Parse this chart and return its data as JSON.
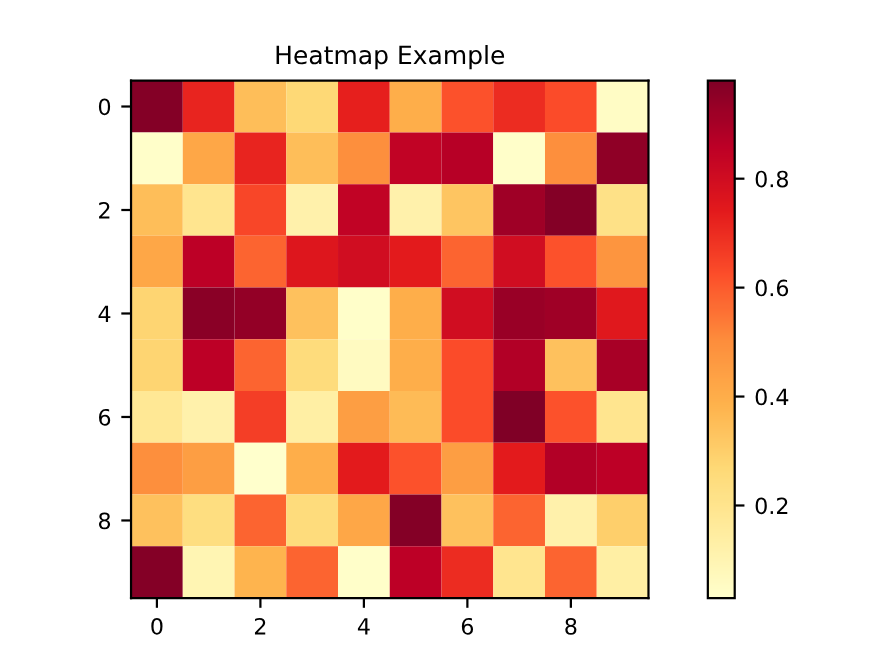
{
  "chart_data": {
    "type": "heatmap",
    "title": "Heatmap Example",
    "categories": [
      "0",
      null,
      "2",
      null,
      "4",
      null,
      "6",
      null,
      "8",
      null
    ],
    "y_categories": [
      "0",
      null,
      "2",
      null,
      "4",
      null,
      "6",
      null,
      "8",
      null
    ],
    "cells": [
      [
        0.97,
        0.72,
        0.35,
        0.27,
        0.73,
        0.4,
        0.62,
        0.7,
        0.63,
        0.05
      ],
      [
        0.04,
        0.42,
        0.72,
        0.35,
        0.5,
        0.85,
        0.87,
        0.04,
        0.5,
        0.95
      ],
      [
        0.35,
        0.2,
        0.64,
        0.12,
        0.85,
        0.12,
        0.33,
        0.92,
        0.97,
        0.22
      ],
      [
        0.42,
        0.86,
        0.58,
        0.76,
        0.8,
        0.74,
        0.58,
        0.8,
        0.62,
        0.48
      ],
      [
        0.28,
        0.96,
        0.94,
        0.34,
        0.04,
        0.4,
        0.8,
        0.93,
        0.92,
        0.75
      ],
      [
        0.28,
        0.86,
        0.58,
        0.25,
        0.06,
        0.4,
        0.63,
        0.88,
        0.34,
        0.9
      ],
      [
        0.18,
        0.12,
        0.66,
        0.14,
        0.45,
        0.36,
        0.63,
        0.98,
        0.62,
        0.2
      ],
      [
        0.5,
        0.45,
        0.03,
        0.4,
        0.74,
        0.62,
        0.45,
        0.74,
        0.88,
        0.86
      ],
      [
        0.34,
        0.24,
        0.58,
        0.25,
        0.42,
        0.97,
        0.34,
        0.58,
        0.12,
        0.3
      ],
      [
        0.97,
        0.1,
        0.38,
        0.58,
        0.04,
        0.86,
        0.7,
        0.2,
        0.58,
        0.14
      ]
    ],
    "clim": [
      0.03,
      0.98
    ],
    "cticks": [
      0.2,
      0.4,
      0.6,
      0.8
    ]
  }
}
